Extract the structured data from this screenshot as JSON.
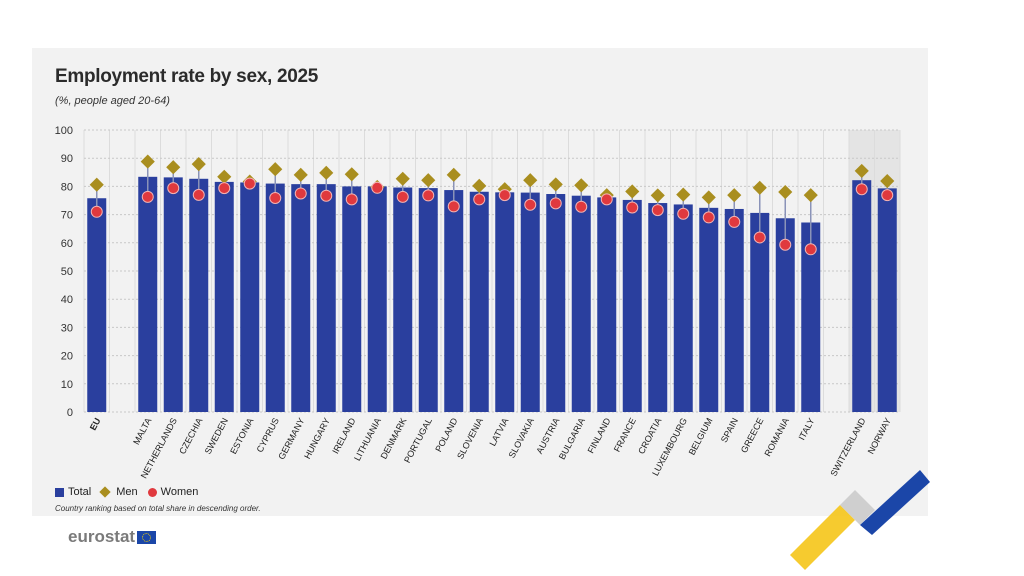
{
  "chart_data": {
    "type": "bar",
    "title": "Employment rate by sex, 2025",
    "subtitle": "(%, people aged 20-64)",
    "xlabel": "",
    "ylabel": "",
    "ylim": [
      0,
      100
    ],
    "yticks": [
      0,
      10,
      20,
      30,
      40,
      50,
      60,
      70,
      80,
      90,
      100
    ],
    "grid": true,
    "legend_placement": "bottom-left",
    "categories": [
      "EU",
      "MALTA",
      "NETHERLANDS",
      "CZECHIA",
      "SWEDEN",
      "ESTONIA",
      "CYPRUS",
      "GERMANY",
      "HUNGARY",
      "IRELAND",
      "LITHUANIA",
      "DENMARK",
      "PORTUGAL",
      "POLAND",
      "SLOVENIA",
      "LATVIA",
      "SLOVAKIA",
      "AUSTRIA",
      "BULGARIA",
      "FINLAND",
      "FRANCE",
      "CROATIA",
      "LUXEMBOURG",
      "BELGIUM",
      "SPAIN",
      "GREECE",
      "ROMANIA",
      "ITALY",
      "SWITZERLAND",
      "NORWAY"
    ],
    "series": [
      {
        "name": "Total",
        "marker": "bar",
        "color": "#2a3f9e",
        "values": [
          75.8,
          83.4,
          83.2,
          82.7,
          81.6,
          81.4,
          81.0,
          80.8,
          80.8,
          80.0,
          80.0,
          79.6,
          79.4,
          78.7,
          78.1,
          77.9,
          77.8,
          77.3,
          76.7,
          76.1,
          75.2,
          74.1,
          73.6,
          72.4,
          72.0,
          70.6,
          68.7,
          67.2,
          82.2,
          79.3
        ]
      },
      {
        "name": "Men",
        "marker": "diamond",
        "color": "#a98e1f",
        "values": [
          80.6,
          88.8,
          86.8,
          87.9,
          83.4,
          81.7,
          86.1,
          84.1,
          84.8,
          84.3,
          79.8,
          82.7,
          82.2,
          84.1,
          80.2,
          79.0,
          82.2,
          80.7,
          80.4,
          76.9,
          78.2,
          76.8,
          77.1,
          76.1,
          76.9,
          79.5,
          78.0,
          76.9,
          85.5,
          81.9
        ]
      },
      {
        "name": "Women",
        "marker": "circle",
        "color": "#e0393e",
        "values": [
          71.0,
          76.3,
          79.4,
          77.0,
          79.4,
          81.0,
          75.9,
          77.5,
          76.7,
          75.4,
          79.5,
          76.3,
          76.8,
          72.9,
          75.4,
          76.9,
          73.5,
          74.0,
          72.8,
          75.4,
          72.5,
          71.6,
          70.3,
          69.0,
          67.4,
          61.9,
          59.3,
          57.7,
          79.0,
          76.9
        ]
      }
    ],
    "note": "Country ranking based on total share in descending order."
  },
  "legend": {
    "total": "Total",
    "men": "Men",
    "women": "Women"
  },
  "branding": {
    "logo_text": "eurostat"
  }
}
